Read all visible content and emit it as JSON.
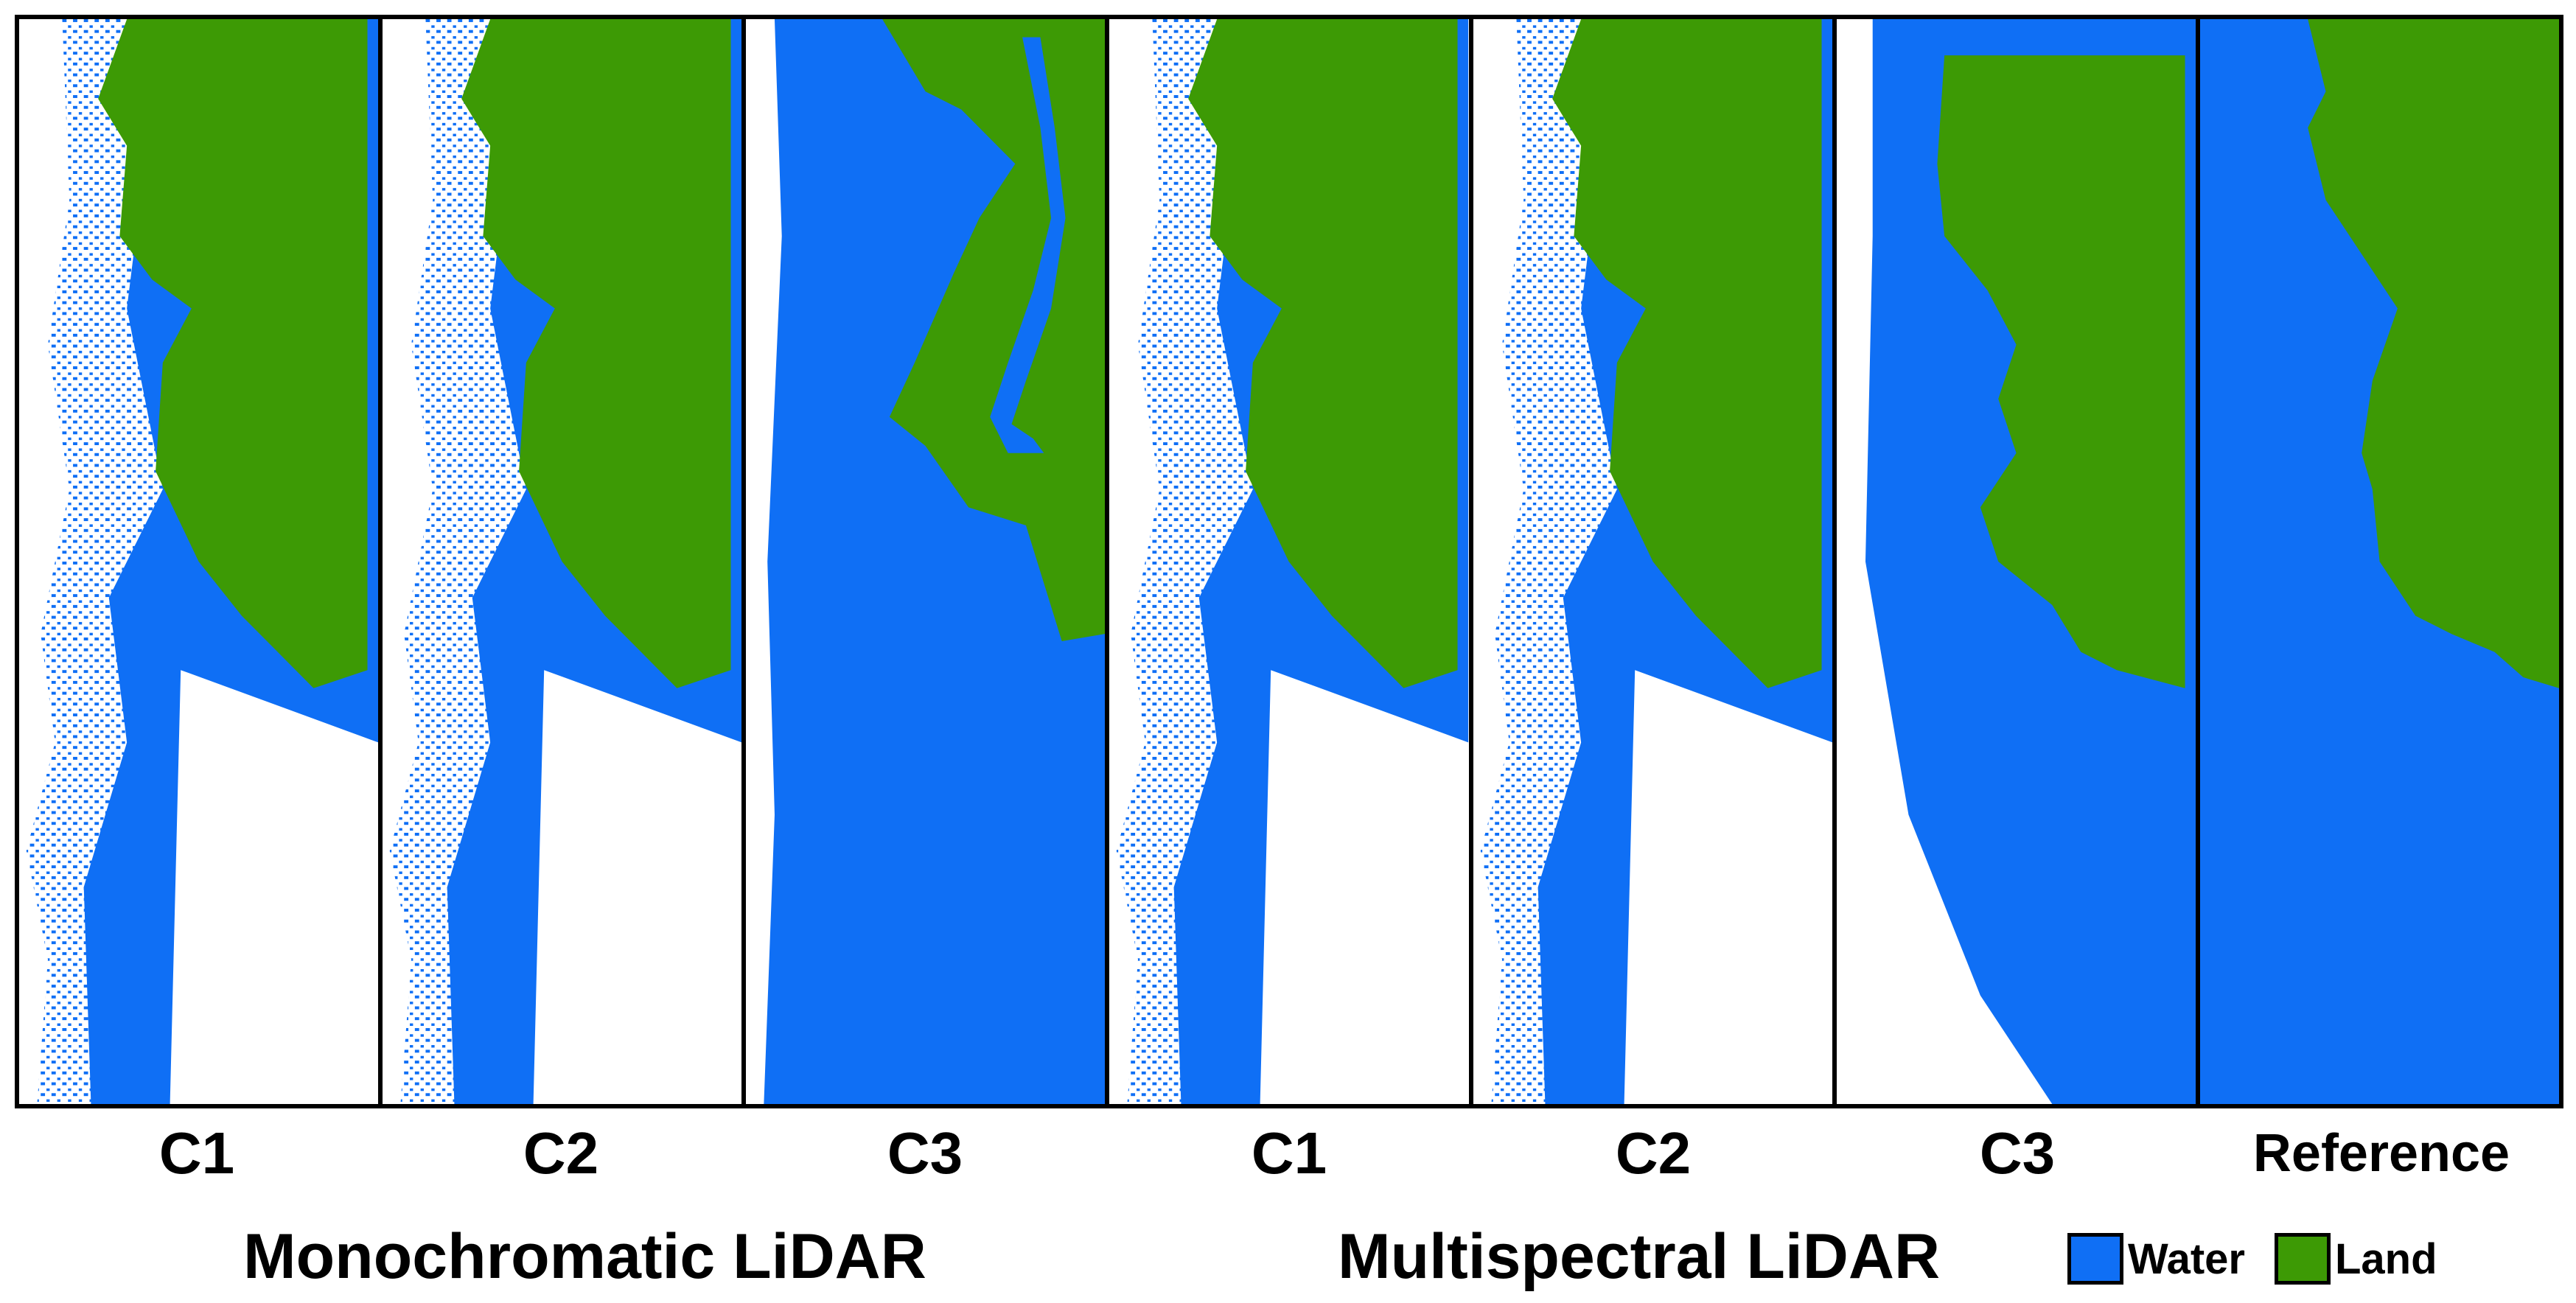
{
  "panels": [
    {
      "id": "mono-c1",
      "label": "C1",
      "group": "mono"
    },
    {
      "id": "mono-c2",
      "label": "C2",
      "group": "mono"
    },
    {
      "id": "mono-c3",
      "label": "C3",
      "group": "mono"
    },
    {
      "id": "multi-c1",
      "label": "C1",
      "group": "multi"
    },
    {
      "id": "multi-c2",
      "label": "C2",
      "group": "multi"
    },
    {
      "id": "multi-c3",
      "label": "C3",
      "group": "multi"
    },
    {
      "id": "reference",
      "label": "Reference",
      "group": "ref"
    }
  ],
  "groups": {
    "mono": "Monochromatic LiDAR",
    "multi": "Multispectral LiDAR"
  },
  "legend": [
    {
      "label": "Water",
      "color": "#0f6ff5"
    },
    {
      "label": "Land",
      "color": "#3d9a05"
    }
  ],
  "colors": {
    "water": "#0f6ff5",
    "land": "#3d9a05",
    "border": "#000000"
  }
}
